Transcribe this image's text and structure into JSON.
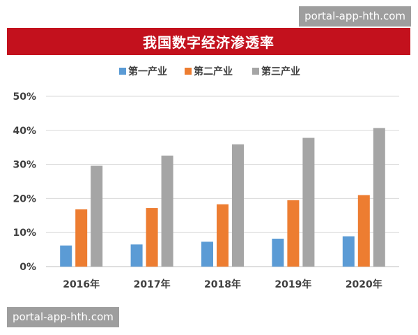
{
  "watermark_top": "portal-app-hth.com",
  "watermark_bottom": "portal-app-hth.com",
  "chart_data": {
    "type": "bar",
    "title": "我国数字经济渗透率",
    "categories": [
      "2016年",
      "2017年",
      "2018年",
      "2019年",
      "2020年"
    ],
    "series": [
      {
        "name": "第一产业",
        "color": "#5b9bd5",
        "values": [
          6.2,
          6.5,
          7.3,
          8.2,
          8.9
        ]
      },
      {
        "name": "第二产业",
        "color": "#ed7d31",
        "values": [
          16.8,
          17.2,
          18.3,
          19.5,
          21.0
        ]
      },
      {
        "name": "第三产业",
        "color": "#a5a5a5",
        "values": [
          29.6,
          32.6,
          35.9,
          37.8,
          40.7
        ]
      }
    ],
    "ylim": [
      0,
      50
    ],
    "yticks": [
      "0%",
      "10%",
      "20%",
      "30%",
      "40%",
      "50%"
    ],
    "grid": true,
    "legend_position": "top"
  }
}
